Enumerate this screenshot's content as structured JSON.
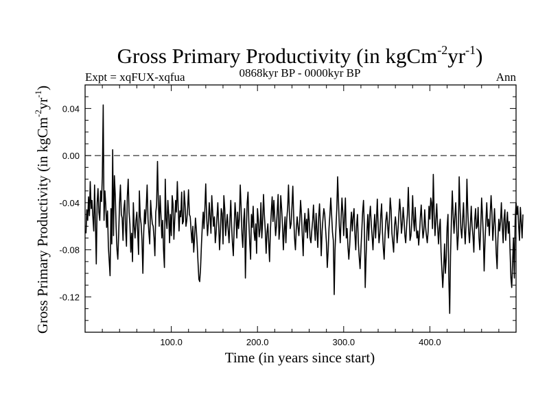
{
  "chart_data": {
    "type": "line",
    "title": "Gross Primary Productivity (in kgCm",
    "title_sup1": "-2",
    "title_mid": "yr",
    "title_sup2": "-1",
    "title_end": ")",
    "subtitle_left": "Expt = xqFUX-xqfua",
    "subtitle_center": "0868kyr BP - 0000kyr BP",
    "subtitle_right": "Ann",
    "xlabel": "Time (in years since start)",
    "ylabel": "Gross Primary Productivity (in kgCm",
    "ylabel_sup1": "-2",
    "ylabel_mid": "yr",
    "ylabel_sup2": "-1",
    "ylabel_end": ")",
    "xlim": [
      0,
      500
    ],
    "ylim": [
      -0.15,
      0.06
    ],
    "x_ticks": [
      100,
      200,
      300,
      400
    ],
    "x_tick_labels": [
      "100.0",
      "200.0",
      "300.0",
      "400.0"
    ],
    "y_ticks": [
      0.04,
      0.0,
      -0.04,
      -0.08,
      -0.12
    ],
    "y_tick_labels": [
      "0.04",
      "0.00",
      "-0.04",
      "-0.08",
      "-0.12"
    ],
    "reference_line": 0.0,
    "x_start": 1,
    "x_step": 1,
    "values": [
      -0.066,
      -0.046,
      -0.055,
      -0.035,
      -0.051,
      -0.022,
      -0.045,
      -0.038,
      -0.052,
      -0.064,
      -0.025,
      -0.058,
      -0.092,
      -0.04,
      -0.028,
      -0.048,
      -0.055,
      -0.03,
      -0.039,
      -0.018,
      0.043,
      -0.055,
      -0.03,
      -0.042,
      -0.061,
      -0.047,
      -0.077,
      -0.09,
      -0.102,
      -0.045,
      -0.075,
      0.005,
      -0.068,
      -0.017,
      -0.034,
      -0.06,
      -0.08,
      -0.088,
      -0.066,
      -0.04,
      -0.025,
      -0.05,
      -0.053,
      -0.072,
      -0.045,
      -0.038,
      -0.062,
      -0.077,
      -0.035,
      -0.02,
      -0.048,
      -0.058,
      -0.082,
      -0.066,
      -0.09,
      -0.04,
      -0.06,
      -0.07,
      -0.055,
      -0.048,
      -0.065,
      -0.084,
      -0.03,
      -0.052,
      -0.058,
      -0.072,
      -0.1,
      -0.066,
      -0.046,
      -0.058,
      -0.042,
      -0.025,
      -0.054,
      -0.065,
      -0.075,
      -0.038,
      -0.05,
      -0.058,
      -0.06,
      -0.07,
      -0.085,
      -0.048,
      -0.042,
      -0.005,
      -0.04,
      -0.06,
      -0.034,
      -0.05,
      -0.07,
      -0.055,
      -0.08,
      -0.095,
      -0.02,
      -0.054,
      -0.062,
      -0.038,
      -0.05,
      -0.074,
      -0.05,
      -0.068,
      -0.034,
      -0.041,
      -0.071,
      -0.055,
      -0.038,
      -0.048,
      -0.022,
      -0.043,
      -0.064,
      -0.047,
      -0.052,
      -0.031,
      -0.058,
      -0.056,
      -0.03,
      -0.042,
      -0.06,
      -0.055,
      -0.044,
      -0.029,
      -0.05,
      -0.052,
      -0.064,
      -0.074,
      -0.06,
      -0.082,
      -0.07,
      -0.053,
      -0.062,
      -0.075,
      -0.09,
      -0.105,
      -0.107,
      -0.095,
      -0.075,
      -0.06,
      -0.048,
      -0.062,
      -0.044,
      -0.024,
      -0.052,
      -0.068,
      -0.058,
      -0.04,
      -0.052,
      -0.066,
      -0.034,
      -0.048,
      -0.06,
      -0.052,
      -0.074,
      -0.066,
      -0.052,
      -0.04,
      -0.059,
      -0.08,
      -0.064,
      -0.045,
      -0.049,
      -0.075,
      -0.034,
      -0.045,
      -0.068,
      -0.058,
      -0.05,
      -0.063,
      -0.074,
      -0.055,
      -0.038,
      -0.06,
      -0.075,
      -0.085,
      -0.06,
      -0.04,
      -0.052,
      -0.07,
      -0.048,
      -0.062,
      -0.054,
      -0.025,
      -0.043,
      -0.067,
      -0.078,
      -0.055,
      -0.045,
      -0.104,
      -0.065,
      -0.041,
      -0.031,
      -0.056,
      -0.074,
      -0.088,
      -0.05,
      -0.061,
      -0.043,
      -0.065,
      -0.072,
      -0.058,
      -0.083,
      -0.045,
      -0.055,
      -0.069,
      -0.062,
      -0.04,
      -0.07,
      -0.056,
      -0.033,
      -0.05,
      -0.063,
      -0.083,
      -0.066,
      -0.058,
      -0.073,
      -0.09,
      -0.064,
      -0.048,
      -0.035,
      -0.056,
      -0.038,
      -0.052,
      -0.068,
      -0.06,
      -0.046,
      -0.033,
      -0.071,
      -0.061,
      -0.034,
      -0.045,
      -0.059,
      -0.08,
      -0.064,
      -0.052,
      -0.074,
      -0.054,
      -0.044,
      -0.025,
      -0.048,
      -0.062,
      -0.058,
      -0.044,
      -0.026,
      -0.052,
      -0.07,
      -0.08,
      -0.063,
      -0.052,
      -0.06,
      -0.068,
      -0.056,
      -0.038,
      -0.05,
      -0.068,
      -0.085,
      -0.06,
      -0.049,
      -0.065,
      -0.054,
      -0.07,
      -0.045,
      -0.055,
      -0.07,
      -0.074,
      -0.064,
      -0.055,
      -0.042,
      -0.06,
      -0.072,
      -0.049,
      -0.064,
      -0.078,
      -0.052,
      -0.041,
      -0.06,
      -0.085,
      -0.064,
      -0.053,
      -0.045,
      -0.05,
      -0.062,
      -0.074,
      -0.095,
      -0.081,
      -0.062,
      -0.05,
      -0.036,
      -0.05,
      -0.065,
      -0.072,
      -0.118,
      -0.08,
      -0.062,
      -0.045,
      -0.018,
      -0.04,
      -0.06,
      -0.074,
      -0.054,
      -0.036,
      -0.048,
      -0.068,
      -0.052,
      -0.036,
      -0.07,
      -0.062,
      -0.078,
      -0.088,
      -0.076,
      -0.06,
      -0.048,
      -0.064,
      -0.052,
      -0.045,
      -0.066,
      -0.08,
      -0.06,
      -0.05,
      -0.074,
      -0.086,
      -0.096,
      -0.08,
      -0.064,
      -0.048,
      -0.038,
      -0.06,
      -0.112,
      -0.085,
      -0.064,
      -0.05,
      -0.072,
      -0.052,
      -0.043,
      -0.058,
      -0.068,
      -0.08,
      -0.062,
      -0.05,
      -0.07,
      -0.056,
      -0.037,
      -0.059,
      -0.074,
      -0.066,
      -0.051,
      -0.041,
      -0.065,
      -0.079,
      -0.088,
      -0.067,
      -0.055,
      -0.048,
      -0.06,
      -0.07,
      -0.054,
      -0.036,
      -0.046,
      -0.066,
      -0.074,
      -0.082,
      -0.06,
      -0.052,
      -0.06,
      -0.074,
      -0.064,
      -0.05,
      -0.037,
      -0.048,
      -0.066,
      -0.058,
      -0.044,
      -0.054,
      -0.068,
      -0.074,
      -0.06,
      -0.05,
      -0.027,
      -0.052,
      -0.072,
      -0.068,
      -0.057,
      -0.034,
      -0.054,
      -0.064,
      -0.044,
      -0.06,
      -0.07,
      -0.064,
      -0.076,
      -0.066,
      -0.052,
      -0.042,
      -0.058,
      -0.07,
      -0.064,
      -0.046,
      -0.06,
      -0.068,
      -0.074,
      -0.064,
      -0.043,
      -0.054,
      -0.036,
      -0.04,
      -0.062,
      -0.016,
      -0.05,
      -0.068,
      -0.054,
      -0.041,
      -0.06,
      -0.075,
      -0.062,
      -0.054,
      -0.082,
      -0.098,
      -0.112,
      -0.096,
      -0.075,
      -0.1,
      -0.087,
      -0.061,
      -0.05,
      -0.104,
      -0.134,
      -0.085,
      -0.055,
      -0.03,
      -0.05,
      -0.066,
      -0.052,
      -0.04,
      -0.06,
      -0.08,
      -0.068,
      -0.018,
      -0.045,
      -0.062,
      -0.07,
      -0.055,
      -0.04,
      -0.061,
      -0.075,
      -0.058,
      -0.02,
      -0.048,
      -0.064,
      -0.074,
      -0.059,
      -0.043,
      -0.06,
      -0.068,
      -0.082,
      -0.055,
      -0.045,
      -0.062,
      -0.06,
      -0.044,
      -0.07,
      -0.08,
      -0.062,
      -0.036,
      -0.05,
      -0.068,
      -0.098,
      -0.072,
      -0.056,
      -0.04,
      -0.06,
      -0.054,
      -0.068,
      -0.05,
      -0.034,
      -0.048,
      -0.072,
      -0.06,
      -0.045,
      -0.062,
      -0.083,
      -0.096,
      -0.07,
      -0.054,
      -0.064,
      -0.056,
      -0.04,
      -0.06,
      -0.074,
      -0.054,
      -0.046,
      -0.072,
      -0.058,
      -0.048,
      -0.066,
      -0.056,
      -0.08,
      -0.104,
      -0.112,
      -0.09,
      -0.07,
      -0.104,
      -0.055,
      -0.04,
      -0.05,
      -0.043,
      -0.06,
      -0.072,
      -0.044,
      -0.056,
      -0.07,
      -0.05
    ]
  }
}
